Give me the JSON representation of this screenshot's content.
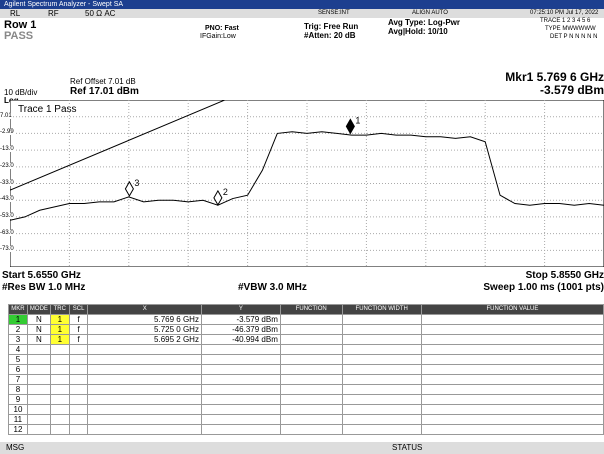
{
  "titlebar": "Agilent Spectrum Analyzer - Swept SA",
  "status_row": {
    "rl": "RL",
    "rf": "RF",
    "imp": "50 Ω  AC",
    "sense": "SENSE:INT",
    "align": "ALIGN AUTO",
    "time": "07:25:10 PM Jul 17, 2022"
  },
  "header": {
    "row": "Row 1",
    "pass": "PASS",
    "pno": "PNO: Fast",
    "ifgain": "IFGain:Low",
    "trig": "Trig: Free Run",
    "atten": "#Atten: 20 dB",
    "avgtype": "Avg Type: Log-Pwr",
    "avghold": "Avg|Hold: 10/10",
    "trace": "TRACE 1 2 3 4 5 6",
    "type": "TYPE MWWWWW",
    "det": "DET P N N N N N"
  },
  "readout": {
    "offset": "Ref Offset 7.01 dB",
    "div": "10 dB/div",
    "ref": "Ref 17.01 dBm",
    "log": "Log",
    "mkr": "Mkr1 5.769 6 GHz",
    "mkr_val": "-3.579 dBm",
    "trace_label": "Trace 1 Pass"
  },
  "plot": {
    "xlim": [
      5.655,
      5.855
    ],
    "ylim": [
      -82.99,
      17.01
    ],
    "yticks": [
      7.01,
      -2.99,
      {
        "value": -13,
        "label": "-13.0"
      },
      {
        "value": -23,
        "label": "-23.0"
      },
      {
        "value": -33,
        "label": "-33.0"
      },
      {
        "value": -43,
        "label": "-43.0"
      },
      {
        "value": -53,
        "label": "-53.0"
      },
      {
        "value": -63,
        "label": "-63.0"
      },
      {
        "value": -73,
        "label": "-73.0"
      }
    ],
    "trace": {
      "x": [
        5.655,
        5.66,
        5.665,
        5.67,
        5.675,
        5.68,
        5.685,
        5.69,
        5.695,
        5.7,
        5.705,
        5.71,
        5.715,
        5.72,
        5.725,
        5.73,
        5.735,
        5.74,
        5.745,
        5.75,
        5.755,
        5.76,
        5.765,
        5.77,
        5.775,
        5.78,
        5.785,
        5.79,
        5.795,
        5.8,
        5.805,
        5.81,
        5.815,
        5.82,
        5.825,
        5.83,
        5.835,
        5.84,
        5.845,
        5.85,
        5.855
      ],
      "values": [
        -55,
        -53,
        -49,
        -47,
        -45,
        -45,
        -44,
        -44,
        -41,
        -44,
        -43,
        -43,
        -44,
        -43,
        -46,
        -42,
        -40,
        -25,
        -3,
        -2,
        -3,
        -2,
        -3,
        -4,
        -4,
        -3,
        -4,
        -4,
        -5,
        -5,
        -6,
        -5,
        -8,
        -40,
        -45,
        -46,
        -45,
        -45,
        -46,
        -45,
        -46
      ]
    },
    "limit": {
      "x": [
        5.655,
        5.73,
        5.855
      ],
      "values": [
        -37,
        19,
        19
      ]
    },
    "markers": [
      {
        "label": "1",
        "x": 5.7696,
        "y": -3.579
      },
      {
        "label": "2",
        "x": 5.725,
        "y": -46.379
      },
      {
        "label": "3",
        "x": 5.6952,
        "y": -40.994
      }
    ]
  },
  "footer": {
    "start": "Start 5.6550 GHz",
    "rbw": "#Res BW 1.0 MHz",
    "vbw": "#VBW 3.0 MHz",
    "stop": "Stop 5.8550 GHz",
    "sweep": "Sweep  1.00 ms (1001 pts)"
  },
  "table": {
    "headers": [
      "MKR",
      "MODE",
      "TRC",
      "SCL",
      "X",
      "Y",
      "FUNCTION",
      "FUNCTION WIDTH",
      "FUNCTION VALUE"
    ],
    "rows": [
      [
        "1",
        "N",
        "1",
        "f",
        "5.769 6 GHz",
        "-3.579 dBm"
      ],
      [
        "2",
        "N",
        "1",
        "f",
        "5.725 0 GHz",
        "-46.379 dBm"
      ],
      [
        "3",
        "N",
        "1",
        "f",
        "5.695 2 GHz",
        "-40.994 dBm"
      ],
      [
        "4"
      ],
      [
        "5"
      ],
      [
        "6"
      ],
      [
        "7"
      ],
      [
        "8"
      ],
      [
        "9"
      ],
      [
        "10"
      ],
      [
        "11"
      ],
      [
        "12"
      ]
    ]
  },
  "statusbar": {
    "msg": "MSG",
    "status": "STATUS"
  }
}
